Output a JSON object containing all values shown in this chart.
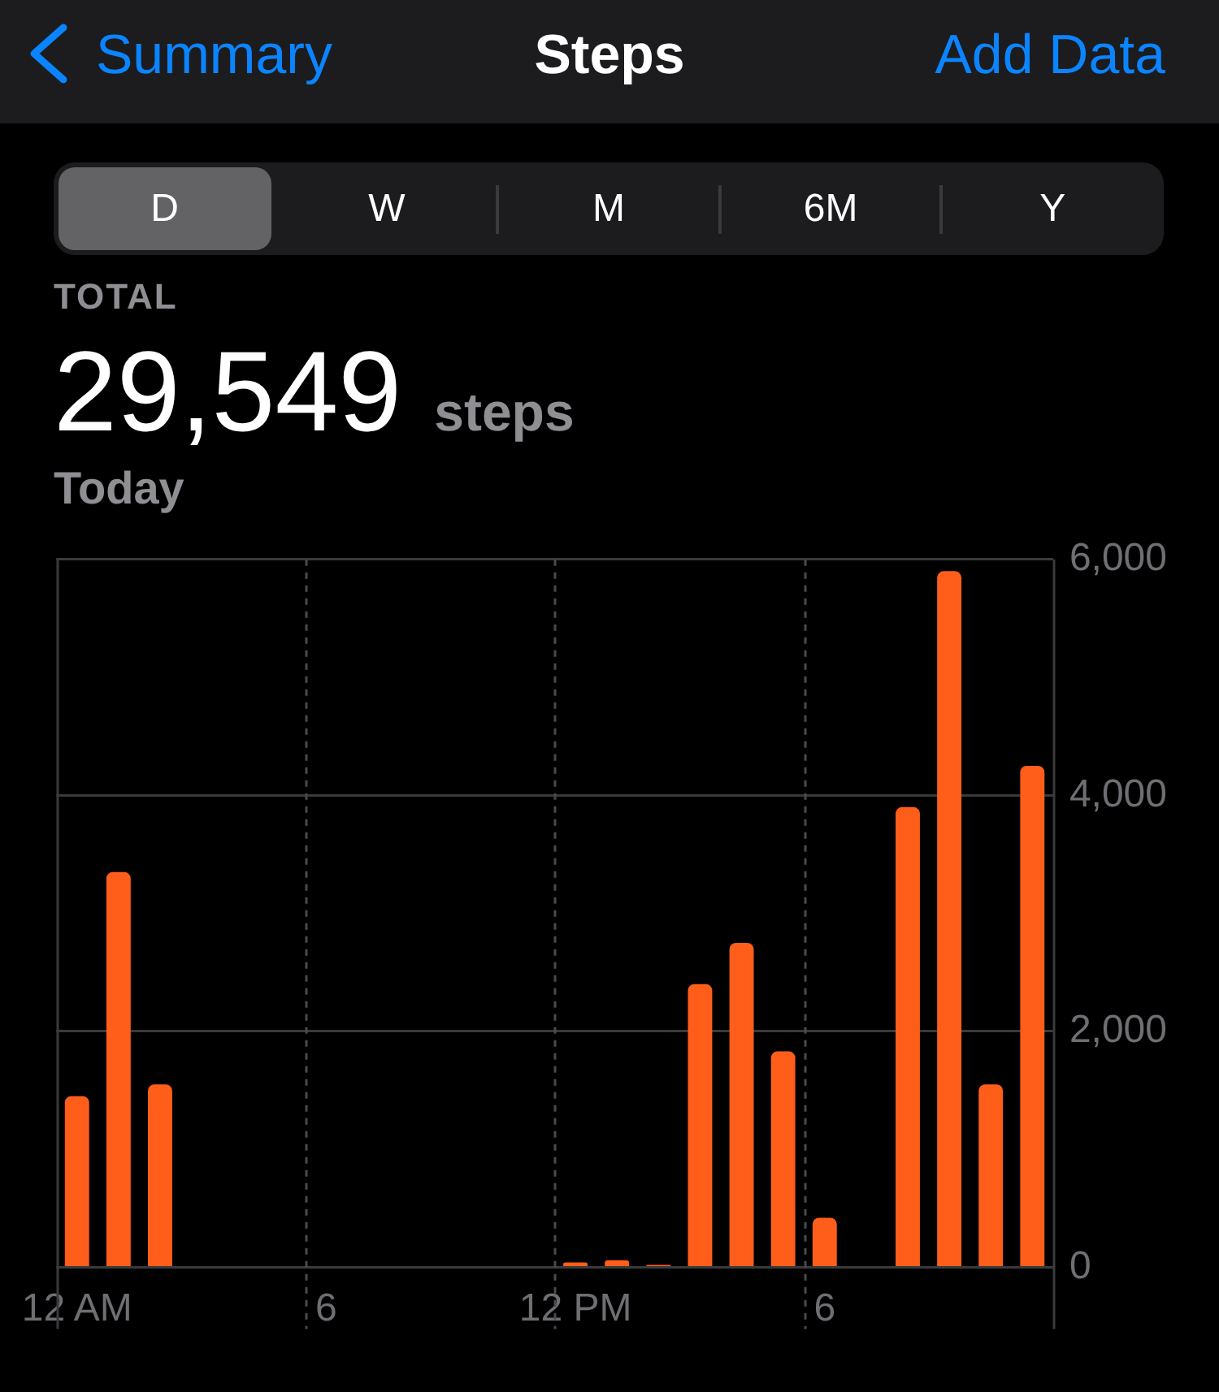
{
  "chart_data": {
    "type": "bar",
    "title": "Steps",
    "annotations": [
      "Summary",
      "Add Data",
      "D",
      "W",
      "M",
      "6M",
      "Y",
      "TOTAL",
      "29,549",
      "steps",
      "Today"
    ],
    "categories": [
      "12 AM",
      null,
      null,
      null,
      null,
      null,
      "6",
      null,
      null,
      null,
      null,
      null,
      "12 PM",
      null,
      null,
      null,
      null,
      null,
      "6",
      null,
      null,
      null,
      null,
      null
    ],
    "values": [
      1450,
      3350,
      1550,
      null,
      null,
      null,
      null,
      null,
      null,
      null,
      null,
      null,
      40,
      60,
      20,
      2400,
      2750,
      1830,
      420,
      null,
      3900,
      5900,
      1550,
      4250
    ],
    "color": "#ff5e1a",
    "ylim": [
      0,
      6000
    ],
    "yticks": [
      0,
      {
        "value": 2000,
        "label": "2,000"
      },
      {
        "value": 4000,
        "label": "4,000"
      },
      {
        "value": 6000,
        "label": "6,000"
      }
    ],
    "grid": true
  }
}
